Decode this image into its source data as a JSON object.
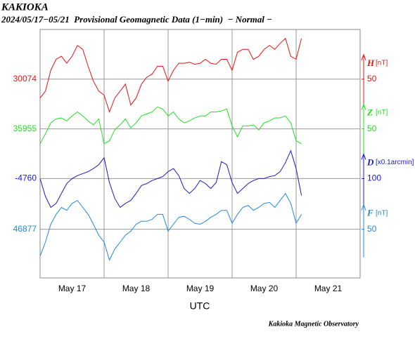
{
  "chart_data": {
    "type": "line",
    "title": "KAKIOKA",
    "subtitle": "2024/05/17−05/21  Provisional Geomagnetic Data (1−min)  − Normal −",
    "xlabel": "UTC",
    "footer": "Kakioka Magnetic Observatory",
    "xlim": [
      0,
      120
    ],
    "xticks": [
      {
        "value": 12,
        "label": "May 17"
      },
      {
        "value": 36,
        "label": "May 18"
      },
      {
        "value": 60,
        "label": "May 19"
      },
      {
        "value": 84,
        "label": "May 20"
      },
      {
        "value": 108,
        "label": "May 21"
      }
    ],
    "xgrid": [
      24,
      48,
      72,
      96
    ],
    "grid": true,
    "x": [
      0,
      2,
      4,
      6,
      8,
      10,
      12,
      14,
      16,
      18,
      20,
      22,
      24,
      26,
      28,
      30,
      32,
      34,
      36,
      38,
      40,
      42,
      44,
      46,
      48,
      50,
      52,
      54,
      56,
      58,
      60,
      62,
      64,
      66,
      68,
      70,
      72,
      74,
      76,
      78,
      80,
      82,
      84,
      86,
      88,
      90,
      92,
      94,
      96,
      98
    ],
    "series": [
      {
        "name": "H",
        "unit": "[nT]",
        "color": "#ee1111",
        "ylim": [
          29874,
          30124
        ],
        "yticks": [
          30074
        ],
        "y2lim": [
          -150,
          100
        ],
        "y2ticks": [
          50
        ],
        "values": [
          30055,
          30062,
          30083,
          30094,
          30097,
          30090,
          30097,
          30108,
          30104,
          30087,
          30072,
          30062,
          30058,
          30041,
          30055,
          30062,
          30069,
          30048,
          30055,
          30069,
          30076,
          30079,
          30087,
          30087,
          30072,
          30083,
          30090,
          30090,
          30091,
          30089,
          30090,
          30094,
          30090,
          30089,
          30094,
          30094,
          30083,
          30101,
          30104,
          30104,
          30094,
          30097,
          30104,
          30108,
          30104,
          30110,
          30115,
          30097,
          30094,
          30115
        ]
      },
      {
        "name": "Z",
        "unit": "[nT]",
        "color": "#22e022",
        "ylim": [
          35805,
          36055
        ],
        "yticks": [
          35955
        ],
        "y2lim": [
          -100,
          150
        ],
        "y2ticks": [
          50
        ],
        "values": [
          35940,
          35950,
          35961,
          35965,
          35966,
          35963,
          35968,
          35972,
          35968,
          35963,
          35959,
          35965,
          35940,
          35943,
          35954,
          35959,
          35965,
          35956,
          35961,
          35968,
          35970,
          35972,
          35977,
          35975,
          35968,
          35972,
          35965,
          35961,
          35963,
          35966,
          35968,
          35968,
          35972,
          35972,
          35973,
          35975,
          35958,
          35947,
          35958,
          35958,
          35959,
          35954,
          35961,
          35963,
          35966,
          35966,
          35968,
          35961,
          35943,
          35940
        ]
      },
      {
        "name": "D",
        "unit": "[x0.1arcmin]",
        "color": "#1a1acc",
        "ylim": [
          -4860,
          -4610
        ],
        "yticks": [
          -4760
        ],
        "y2lim": [
          0,
          250
        ],
        "y2ticks": [
          100
        ],
        "values": [
          -4760,
          -4778,
          -4789,
          -4785,
          -4775,
          -4765,
          -4760,
          -4757,
          -4755,
          -4753,
          -4750,
          -4746,
          -4739,
          -4764,
          -4780,
          -4789,
          -4785,
          -4782,
          -4775,
          -4767,
          -4765,
          -4762,
          -4760,
          -4758,
          -4753,
          -4750,
          -4757,
          -4770,
          -4775,
          -4770,
          -4762,
          -4765,
          -4770,
          -4764,
          -4743,
          -4746,
          -4764,
          -4775,
          -4770,
          -4765,
          -4762,
          -4760,
          -4760,
          -4758,
          -4757,
          -4753,
          -4744,
          -4732,
          -4750,
          -4777
        ]
      },
      {
        "name": "F",
        "unit": "[nT]",
        "color": "#2288dd",
        "ylim": [
          46828,
          47078
        ],
        "yticks": [
          46877
        ],
        "y2lim": [
          1,
          251
        ],
        "y2ticks": [
          50
        ],
        "values": [
          46850,
          46864,
          46882,
          46892,
          46899,
          46896,
          46903,
          46906,
          46899,
          46892,
          46882,
          46871,
          46864,
          46846,
          46857,
          46864,
          46871,
          46875,
          46882,
          46885,
          46885,
          46887,
          46892,
          46892,
          46875,
          46882,
          46889,
          46890,
          46887,
          46883,
          46882,
          46885,
          46889,
          46892,
          46896,
          46896,
          46883,
          46892,
          46899,
          46901,
          46896,
          46899,
          46903,
          46904,
          46899,
          46906,
          46913,
          46903,
          46883,
          46892
        ]
      }
    ]
  }
}
